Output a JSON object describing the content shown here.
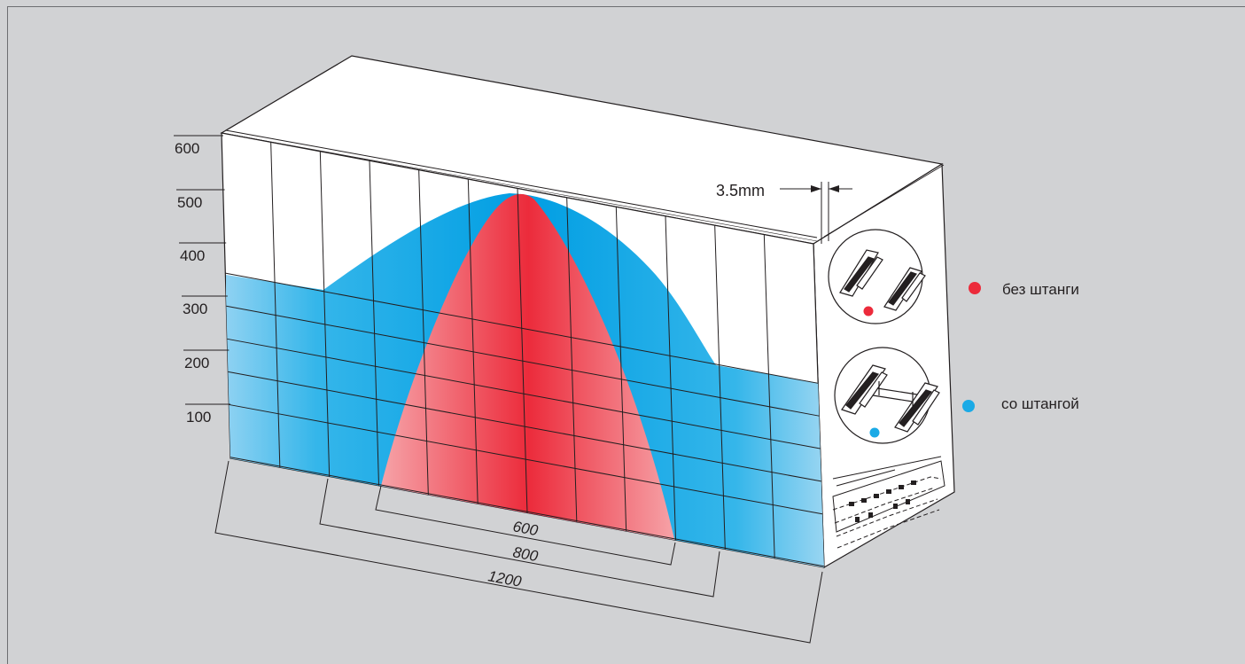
{
  "y_axis": {
    "ticks": [
      "600",
      "500",
      "400",
      "300",
      "200",
      "100"
    ]
  },
  "dimensions": {
    "widths": [
      "600",
      "800",
      "1200"
    ],
    "gap": "3.5mm"
  },
  "legend": [
    {
      "label": "без штанги",
      "color": "#ec2b3b"
    },
    {
      "label": "со штангой",
      "color": "#1aaae6"
    }
  ],
  "chart_data": {
    "type": "area",
    "title": "",
    "xlabel": "",
    "ylabel": "",
    "ylim": [
      0,
      600
    ],
    "x_extent_labels": [
      "600",
      "800",
      "1200"
    ],
    "series": [
      {
        "name": "без штанги",
        "x_range": [
          -300,
          300
        ],
        "x": [
          -300,
          -150,
          0,
          150,
          300
        ],
        "y": [
          0,
          380,
          500,
          380,
          0
        ]
      },
      {
        "name": "со штангой",
        "x_range": [
          -600,
          600
        ],
        "x": [
          -600,
          -400,
          -200,
          0,
          200,
          400,
          600
        ],
        "y": [
          350,
          320,
          470,
          500,
          400,
          180,
          150
        ]
      }
    ]
  }
}
